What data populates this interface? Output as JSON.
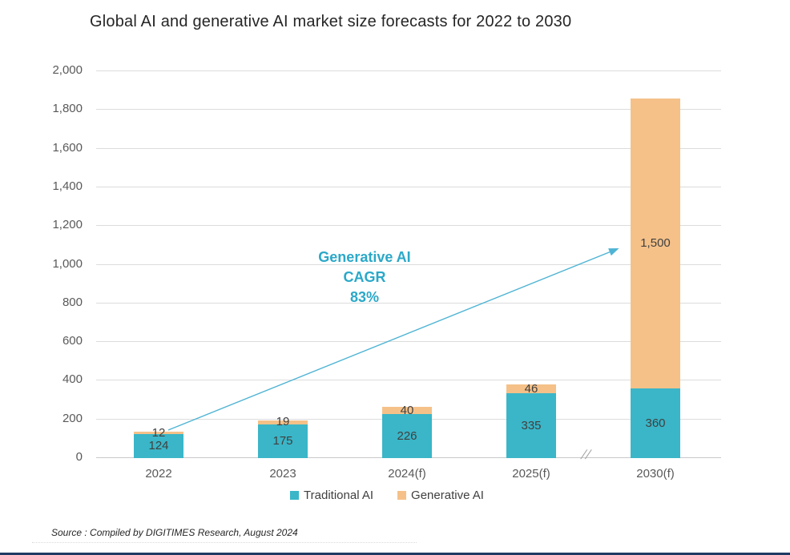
{
  "title": "Global AI and generative AI market size forecasts for 2022 to 2030",
  "chart_data": {
    "type": "bar",
    "stacked": true,
    "title": "Global AI and generative AI market size forecasts for 2022 to 2030",
    "categories": [
      "2022",
      "2023",
      "2024(f)",
      "2025(f)",
      "2030(f)"
    ],
    "series": [
      {
        "name": "Traditional AI",
        "color": "#3ab6c8",
        "values": [
          124,
          175,
          226,
          335,
          360
        ],
        "labels": [
          "124",
          "175",
          "226",
          "335",
          "360"
        ]
      },
      {
        "name": "Generative AI",
        "color": "#f5c189",
        "values": [
          12,
          19,
          40,
          46,
          1500
        ],
        "labels": [
          "12",
          "19",
          "40",
          "46",
          "1,500"
        ]
      }
    ],
    "ylim": [
      0,
      2000
    ],
    "y_tick_step": 200,
    "y_tick_labels": [
      "0",
      "200",
      "400",
      "600",
      "800",
      "1,000",
      "1,200",
      "1,400",
      "1,600",
      "1,800",
      "2,000"
    ],
    "grid": true,
    "legend_position": "bottom",
    "axis_break": {
      "symbol": "//",
      "between": [
        "2025(f)",
        "2030(f)"
      ]
    }
  },
  "annotation": {
    "lines": [
      "Generative AI",
      "CAGR",
      "83%"
    ],
    "color": "#2ba8c8"
  },
  "source": "Source : Compiled by DIGITIMES Research, August 2024",
  "colors": {
    "traditional": "#3ab6c8",
    "generative": "#f5c189",
    "annotation": "#2ba8c8",
    "arrow": "#4fb4d4",
    "gridline": "#dcdcdc",
    "axis_text": "#595959",
    "label_text": "#404040",
    "footer_bar": "#1f3a63"
  }
}
